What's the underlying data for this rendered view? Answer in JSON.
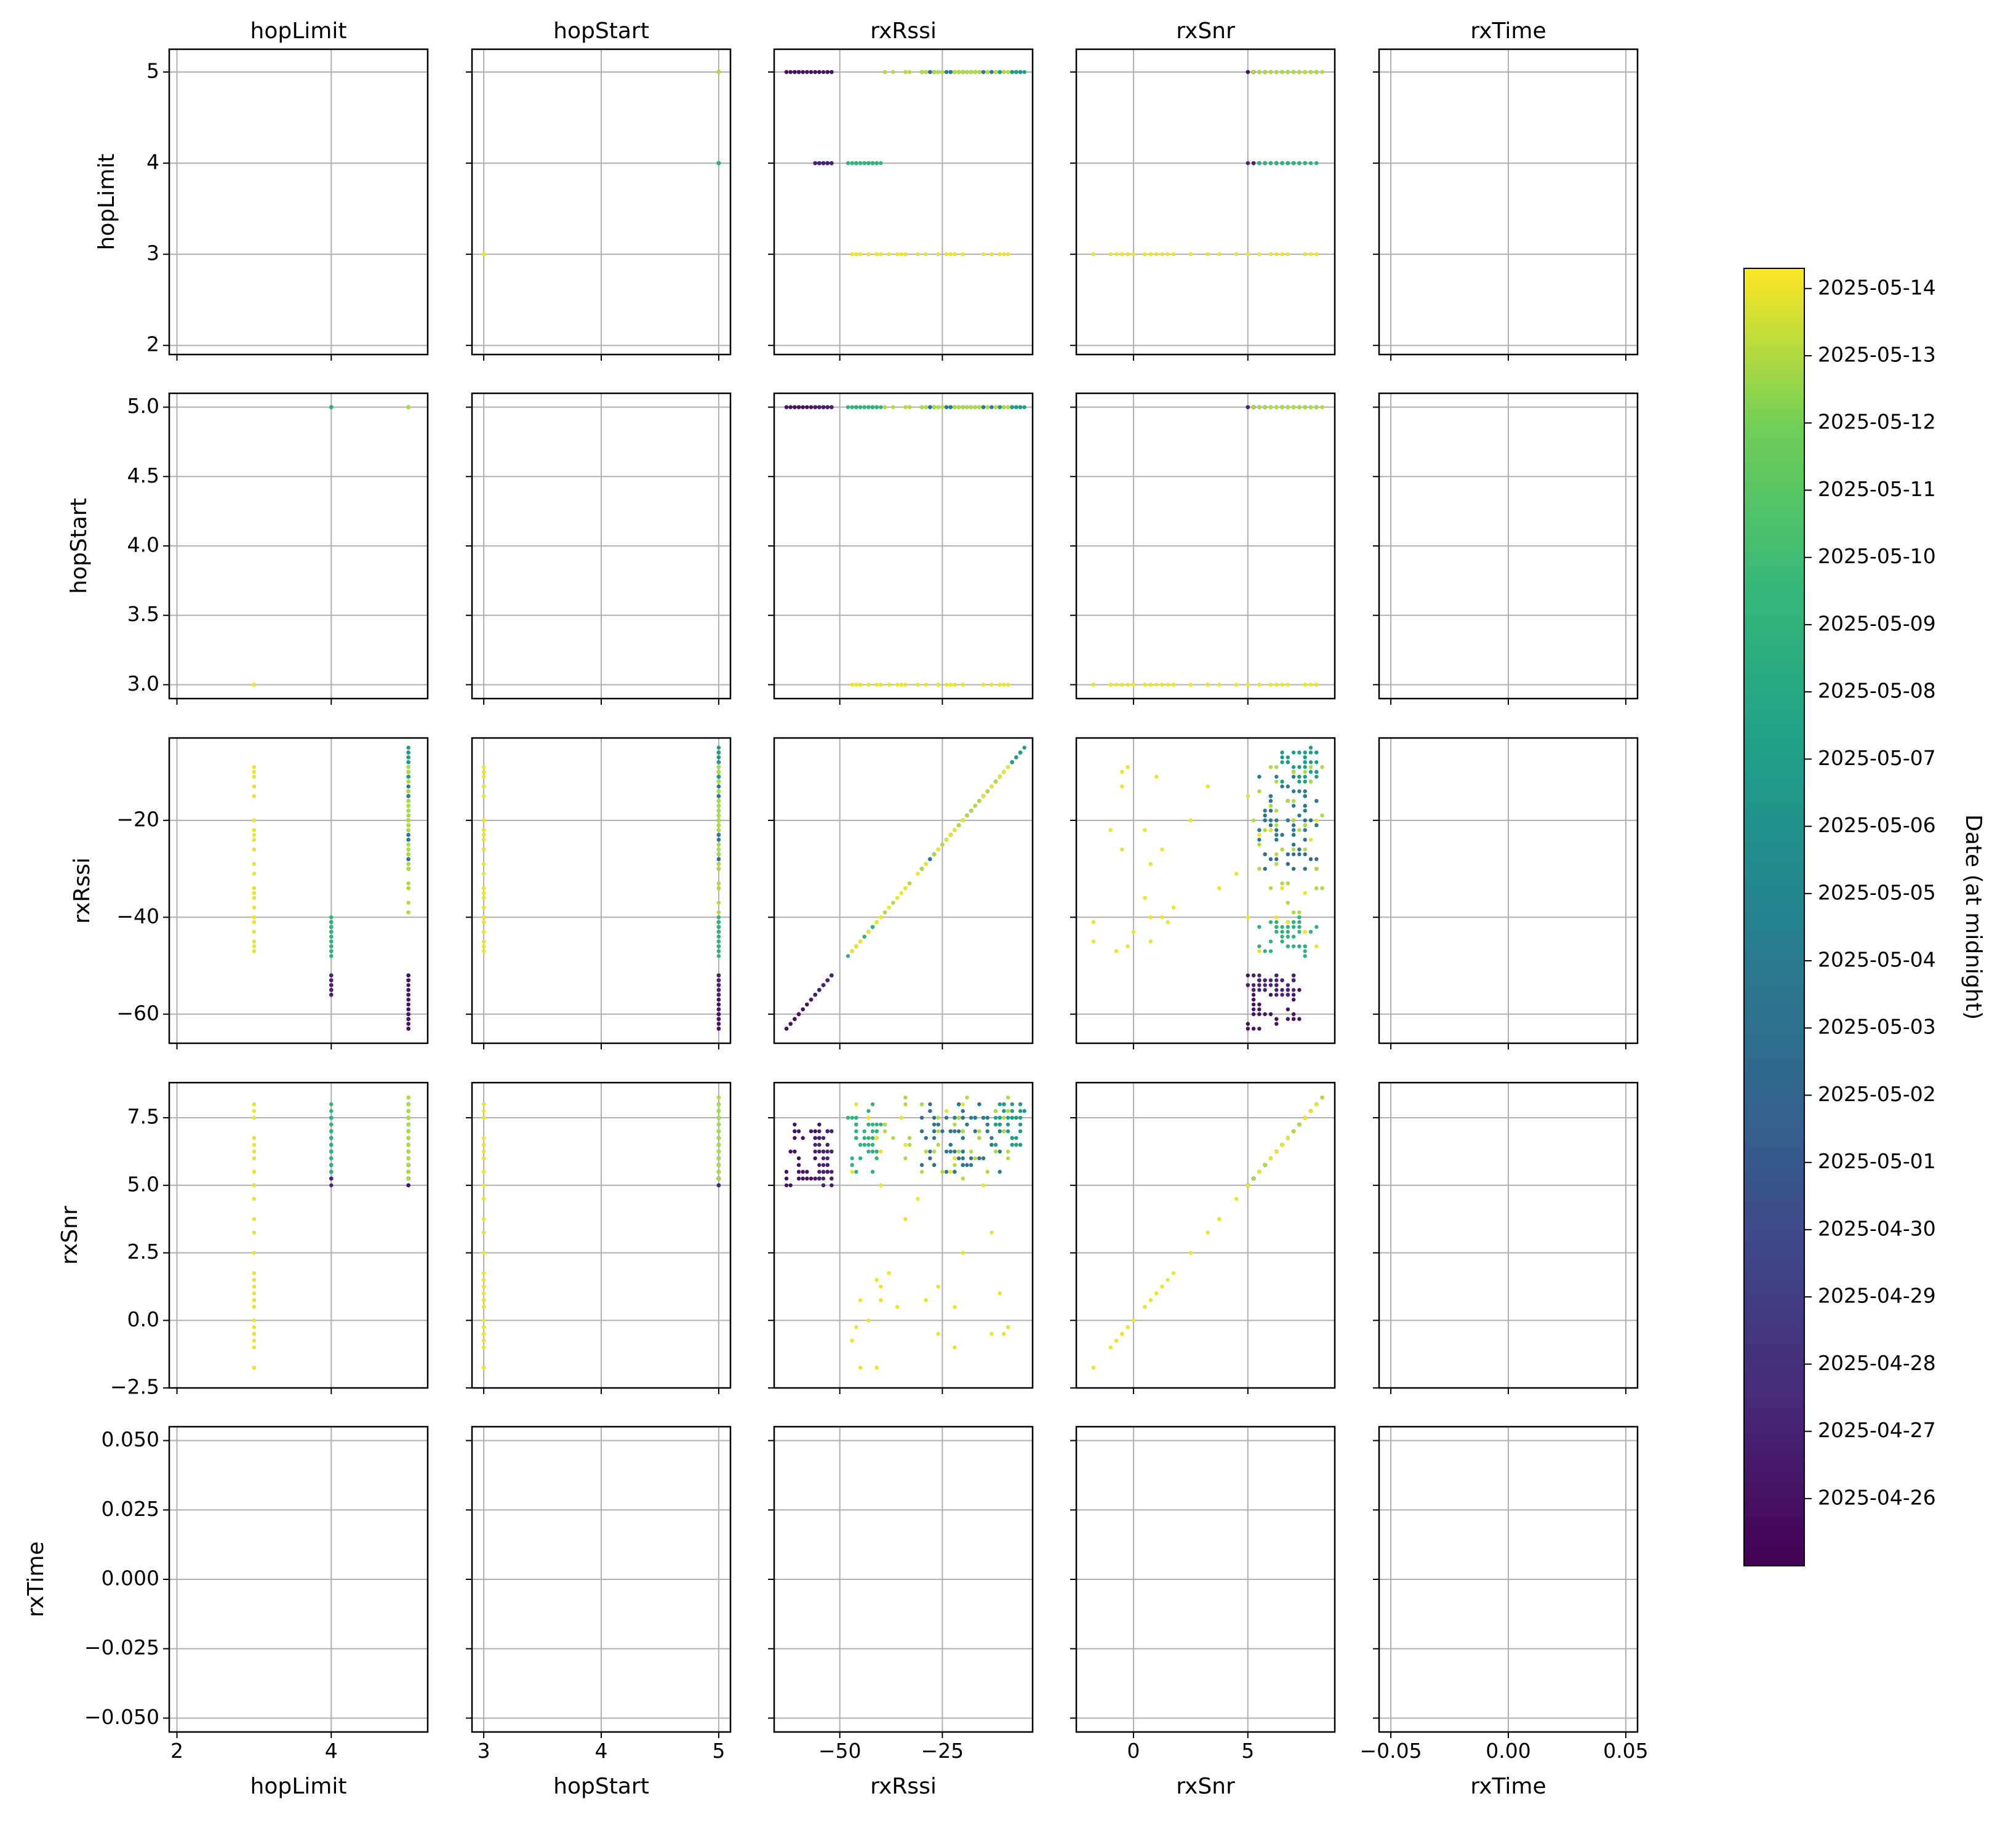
{
  "chart_data": {
    "type": "scatter",
    "layout": "pair-grid",
    "variables": [
      "hopLimit",
      "hopStart",
      "rxRssi",
      "rxSnr",
      "rxTime"
    ],
    "axis_ranges": {
      "hopLimit": [
        1.9,
        5.25
      ],
      "hopStart": [
        2.9,
        5.1
      ],
      "rxRssi": [
        -66,
        -3
      ],
      "rxSnr": [
        -2.5,
        8.8
      ],
      "rxTime": [
        -0.055,
        0.055
      ]
    },
    "axis_ticks": {
      "hopLimit": {
        "row": [
          2,
          3,
          4,
          5
        ],
        "col": [
          2,
          4
        ]
      },
      "hopStart": {
        "row": [
          3.0,
          3.5,
          4.0,
          4.5,
          5.0
        ],
        "col": [
          3,
          4,
          5
        ]
      },
      "rxRssi": {
        "row": [
          -60,
          -40,
          -20
        ],
        "col": [
          -50,
          -25
        ]
      },
      "rxSnr": {
        "row": [
          -2.5,
          0.0,
          2.5,
          5.0,
          7.5
        ],
        "col": [
          0,
          5
        ]
      },
      "rxTime": {
        "row": [
          -0.05,
          -0.025,
          0.0,
          0.025,
          0.05
        ],
        "col": [
          -0.05,
          0.0,
          0.05
        ]
      }
    },
    "axis_tick_labels": {
      "hopLimit": {
        "row": [
          "2",
          "3",
          "4",
          "5"
        ],
        "col": [
          "2",
          "4"
        ]
      },
      "hopStart": {
        "row": [
          "3.0",
          "3.5",
          "4.0",
          "4.5",
          "5.0"
        ],
        "col": [
          "3",
          "4",
          "5"
        ]
      },
      "rxRssi": {
        "row": [
          "−60",
          "−40",
          "−20"
        ],
        "col": [
          "−50",
          "−25"
        ]
      },
      "rxSnr": {
        "row": [
          "−2.5",
          "0.0",
          "2.5",
          "5.0",
          "7.5"
        ],
        "col": [
          "0",
          "5"
        ]
      },
      "rxTime": {
        "row": [
          "−0.050",
          "−0.025",
          "0.000",
          "0.025",
          "0.050"
        ],
        "col": [
          "−0.05",
          "0.00",
          "0.05"
        ]
      }
    },
    "grid": true,
    "marker": "small dots",
    "color_encoding": "date (viridis)",
    "colorbar": {
      "label": "Date (at midnight)",
      "placement": "right",
      "colormap": "viridis",
      "range": [
        "2025-04-25",
        "2025-05-14"
      ],
      "ticks": [
        "2025-04-26",
        "2025-04-27",
        "2025-04-28",
        "2025-04-29",
        "2025-04-30",
        "2025-05-01",
        "2025-05-02",
        "2025-05-03",
        "2025-05-04",
        "2025-05-05",
        "2025-05-06",
        "2025-05-07",
        "2025-05-08",
        "2025-05-09",
        "2025-05-10",
        "2025-05-11",
        "2025-05-12",
        "2025-05-13",
        "2025-05-14"
      ]
    },
    "groups": [
      {
        "date": "2025-04-26",
        "hopLimit": 5,
        "hopStart": 5,
        "rxRssi": [
          -63,
          -51
        ],
        "rxSnr": [
          5.0,
          7.5
        ]
      },
      {
        "date": "2025-04-27",
        "hopLimit": 4,
        "hopStart": 5,
        "rxRssi": [
          -56,
          -52
        ],
        "rxSnr": [
          5.0,
          7.0
        ]
      },
      {
        "date": "2025-05-03",
        "hopLimit": 5,
        "hopStart": 5,
        "rxRssi": [
          -30,
          -15
        ],
        "rxSnr": [
          5.5,
          8.0
        ]
      },
      {
        "date": "2025-05-04",
        "hopLimit": 5,
        "hopStart": 5,
        "rxRssi": [
          -26,
          -10
        ],
        "rxSnr": [
          5.5,
          8.0
        ]
      },
      {
        "date": "2025-05-07",
        "hopLimit": 5,
        "hopStart": 5,
        "rxRssi": [
          -12,
          -5
        ],
        "rxSnr": [
          6.5,
          8.0
        ]
      },
      {
        "date": "2025-05-09",
        "hopLimit": 4,
        "hopStart": 5,
        "rxRssi": [
          -48,
          -40
        ],
        "rxSnr": [
          5.5,
          8.0
        ]
      },
      {
        "date": "2025-05-13",
        "hopLimit": 5,
        "hopStart": 5,
        "rxRssi": [
          -40,
          -8
        ],
        "rxSnr": [
          5.0,
          8.3
        ]
      },
      {
        "date": "2025-05-14",
        "hopLimit": 3,
        "hopStart": 3,
        "rxRssi": [
          -47,
          -8
        ],
        "rxSnr": [
          -2.0,
          8.3
        ]
      }
    ]
  }
}
